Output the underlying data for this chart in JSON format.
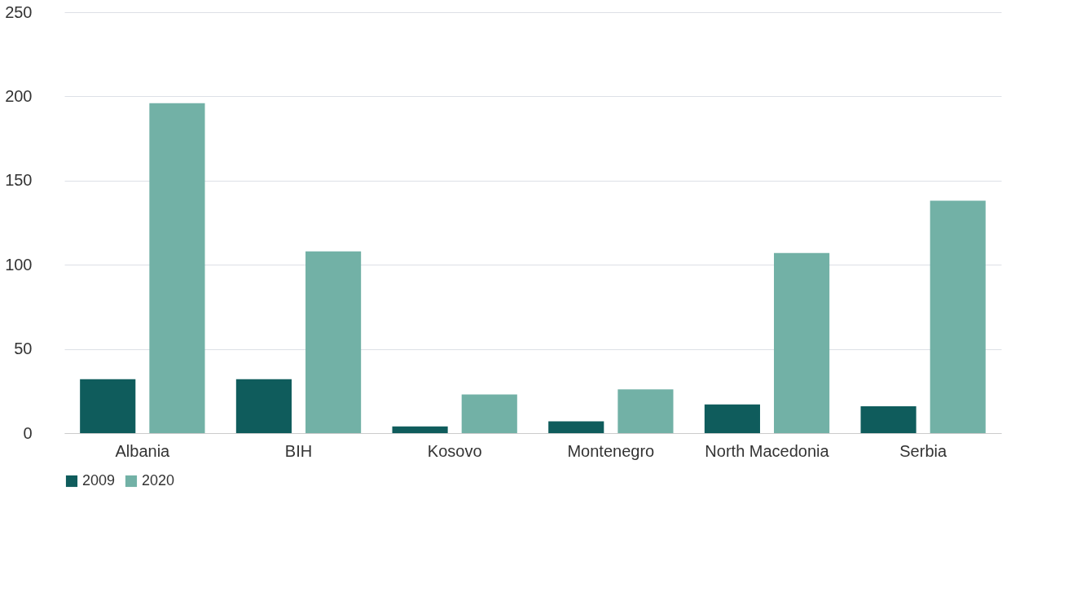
{
  "chart_data": {
    "type": "bar",
    "categories": [
      "Albania",
      "BIH",
      "Kosovo",
      "Montenegro",
      "North Macedonia",
      "Serbia"
    ],
    "series": [
      {
        "name": "2009",
        "color": "#0f5c5c",
        "values": [
          32,
          32,
          4,
          7,
          17,
          16
        ]
      },
      {
        "name": "2020",
        "color": "#72b1a6",
        "values": [
          196,
          108,
          23,
          26,
          107,
          138
        ]
      }
    ],
    "ylim": [
      0,
      250
    ],
    "yticks": [
      0,
      50,
      100,
      150,
      200,
      250
    ],
    "grid": "y",
    "legend": "bottom"
  }
}
